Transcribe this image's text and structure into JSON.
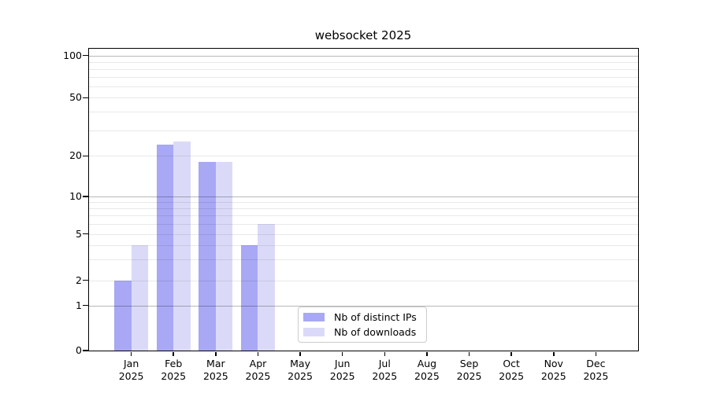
{
  "title": "websocket 2025",
  "legend": {
    "position": "lower center",
    "items": [
      {
        "label": "Nb of distinct IPs",
        "color": "#a8a8f5"
      },
      {
        "label": "Nb of downloads",
        "color": "#dadaf8"
      }
    ]
  },
  "chart_data": {
    "type": "bar",
    "title": "websocket 2025",
    "categories": [
      "Jan",
      "Feb",
      "Mar",
      "Apr",
      "May",
      "Jun",
      "Jul",
      "Aug",
      "Sep",
      "Oct",
      "Nov",
      "Dec"
    ],
    "category_year": "2025",
    "series": [
      {
        "name": "Nb of distinct IPs",
        "color": "#a8a8f5",
        "values": [
          2,
          24,
          18,
          4,
          0,
          0,
          0,
          0,
          0,
          0,
          0,
          0
        ]
      },
      {
        "name": "Nb of downloads",
        "color": "#dadaf8",
        "values": [
          4,
          25,
          18,
          6,
          0,
          0,
          0,
          0,
          0,
          0,
          0,
          0
        ]
      }
    ],
    "xlabel": "",
    "ylabel": "",
    "y_axis": {
      "scale": "log-like (linear segment below 1)",
      "ylim": [
        0,
        110
      ],
      "tick_values": [
        0,
        1,
        2,
        5,
        10,
        20,
        50,
        100
      ],
      "tick_labels": [
        "0",
        "1",
        "2",
        "5",
        "10",
        "20",
        "50",
        "100"
      ],
      "major_gridlines": [
        1,
        10,
        100
      ],
      "minor_gridlines": [
        2,
        3,
        4,
        5,
        6,
        7,
        8,
        9,
        20,
        30,
        40,
        50,
        60,
        70,
        80,
        90
      ]
    },
    "grid": true,
    "legend_position": "lower center",
    "colors": {
      "background": "#ffffff",
      "spine": "#000000",
      "text": "#000000",
      "major_grid": "#b8b8b8",
      "minor_grid": "#ebebeb"
    }
  }
}
